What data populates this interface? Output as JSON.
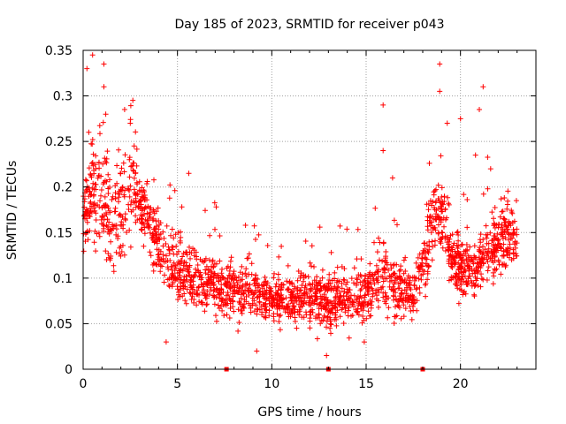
{
  "chart_data": {
    "type": "scatter",
    "title": "Day 185 of 2023, SRMTID for receiver p043",
    "xlabel": "GPS time / hours",
    "ylabel": "SRMTID / TECUs",
    "xlim": [
      0,
      24
    ],
    "ylim": [
      0,
      0.35
    ],
    "xticks": [
      0,
      5,
      10,
      15,
      20
    ],
    "xtick_labels": [
      "0",
      "5",
      "10",
      "15",
      "20"
    ],
    "yticks": [
      0,
      0.05,
      0.1,
      0.15,
      0.2,
      0.25,
      0.3,
      0.35
    ],
    "ytick_labels": [
      "0",
      "0.05",
      "0.1",
      "0.15",
      "0.2",
      "0.25",
      "0.3",
      "0.35"
    ],
    "grid": true,
    "marker": "plus",
    "colors": {
      "points": "#ff0000",
      "grid": "#a0a0a0",
      "axis": "#000000"
    },
    "baseline_markers_x": [
      7.6,
      13.0,
      18.0
    ],
    "envelope": {
      "x": [
        0,
        0.5,
        1,
        1.5,
        2,
        2.5,
        3,
        3.5,
        4,
        4.5,
        5,
        6,
        7,
        8,
        9,
        10,
        11,
        12,
        13,
        14,
        15,
        15.5,
        16,
        16.5,
        17,
        17.5,
        18,
        18.5,
        19,
        19.5,
        20,
        20.5,
        21,
        21.5,
        22,
        22.5,
        23
      ],
      "median": [
        0.17,
        0.2,
        0.19,
        0.16,
        0.17,
        0.2,
        0.18,
        0.16,
        0.14,
        0.12,
        0.11,
        0.1,
        0.09,
        0.085,
        0.085,
        0.075,
        0.075,
        0.08,
        0.075,
        0.08,
        0.08,
        0.1,
        0.1,
        0.09,
        0.085,
        0.08,
        0.12,
        0.16,
        0.17,
        0.12,
        0.11,
        0.11,
        0.12,
        0.13,
        0.14,
        0.15,
        0.14
      ],
      "spread": [
        0.04,
        0.06,
        0.07,
        0.05,
        0.06,
        0.05,
        0.04,
        0.04,
        0.035,
        0.035,
        0.035,
        0.03,
        0.03,
        0.03,
        0.03,
        0.025,
        0.025,
        0.03,
        0.03,
        0.03,
        0.03,
        0.035,
        0.04,
        0.03,
        0.025,
        0.025,
        0.04,
        0.04,
        0.04,
        0.03,
        0.03,
        0.03,
        0.03,
        0.035,
        0.04,
        0.04,
        0.03
      ]
    },
    "num_points": 2200,
    "highlights": [
      {
        "x": 0.5,
        "y": 0.345
      },
      {
        "x": 0.2,
        "y": 0.33
      },
      {
        "x": 1.1,
        "y": 0.335
      },
      {
        "x": 1.1,
        "y": 0.31
      },
      {
        "x": 2.2,
        "y": 0.285
      },
      {
        "x": 2.5,
        "y": 0.27
      },
      {
        "x": 5.6,
        "y": 0.215
      },
      {
        "x": 15.9,
        "y": 0.29
      },
      {
        "x": 15.9,
        "y": 0.24
      },
      {
        "x": 18.9,
        "y": 0.335
      },
      {
        "x": 18.9,
        "y": 0.305
      },
      {
        "x": 21.2,
        "y": 0.31
      },
      {
        "x": 21.0,
        "y": 0.285
      },
      {
        "x": 20.0,
        "y": 0.275
      },
      {
        "x": 19.3,
        "y": 0.27
      },
      {
        "x": 20.8,
        "y": 0.235
      },
      {
        "x": 21.6,
        "y": 0.22
      },
      {
        "x": 9.2,
        "y": 0.02
      },
      {
        "x": 12.9,
        "y": 0.015
      },
      {
        "x": 14.9,
        "y": 0.03
      },
      {
        "x": 4.4,
        "y": 0.03
      },
      {
        "x": 0.3,
        "y": 0.26
      },
      {
        "x": 1.2,
        "y": 0.28
      },
      {
        "x": 16.4,
        "y": 0.21
      }
    ]
  }
}
